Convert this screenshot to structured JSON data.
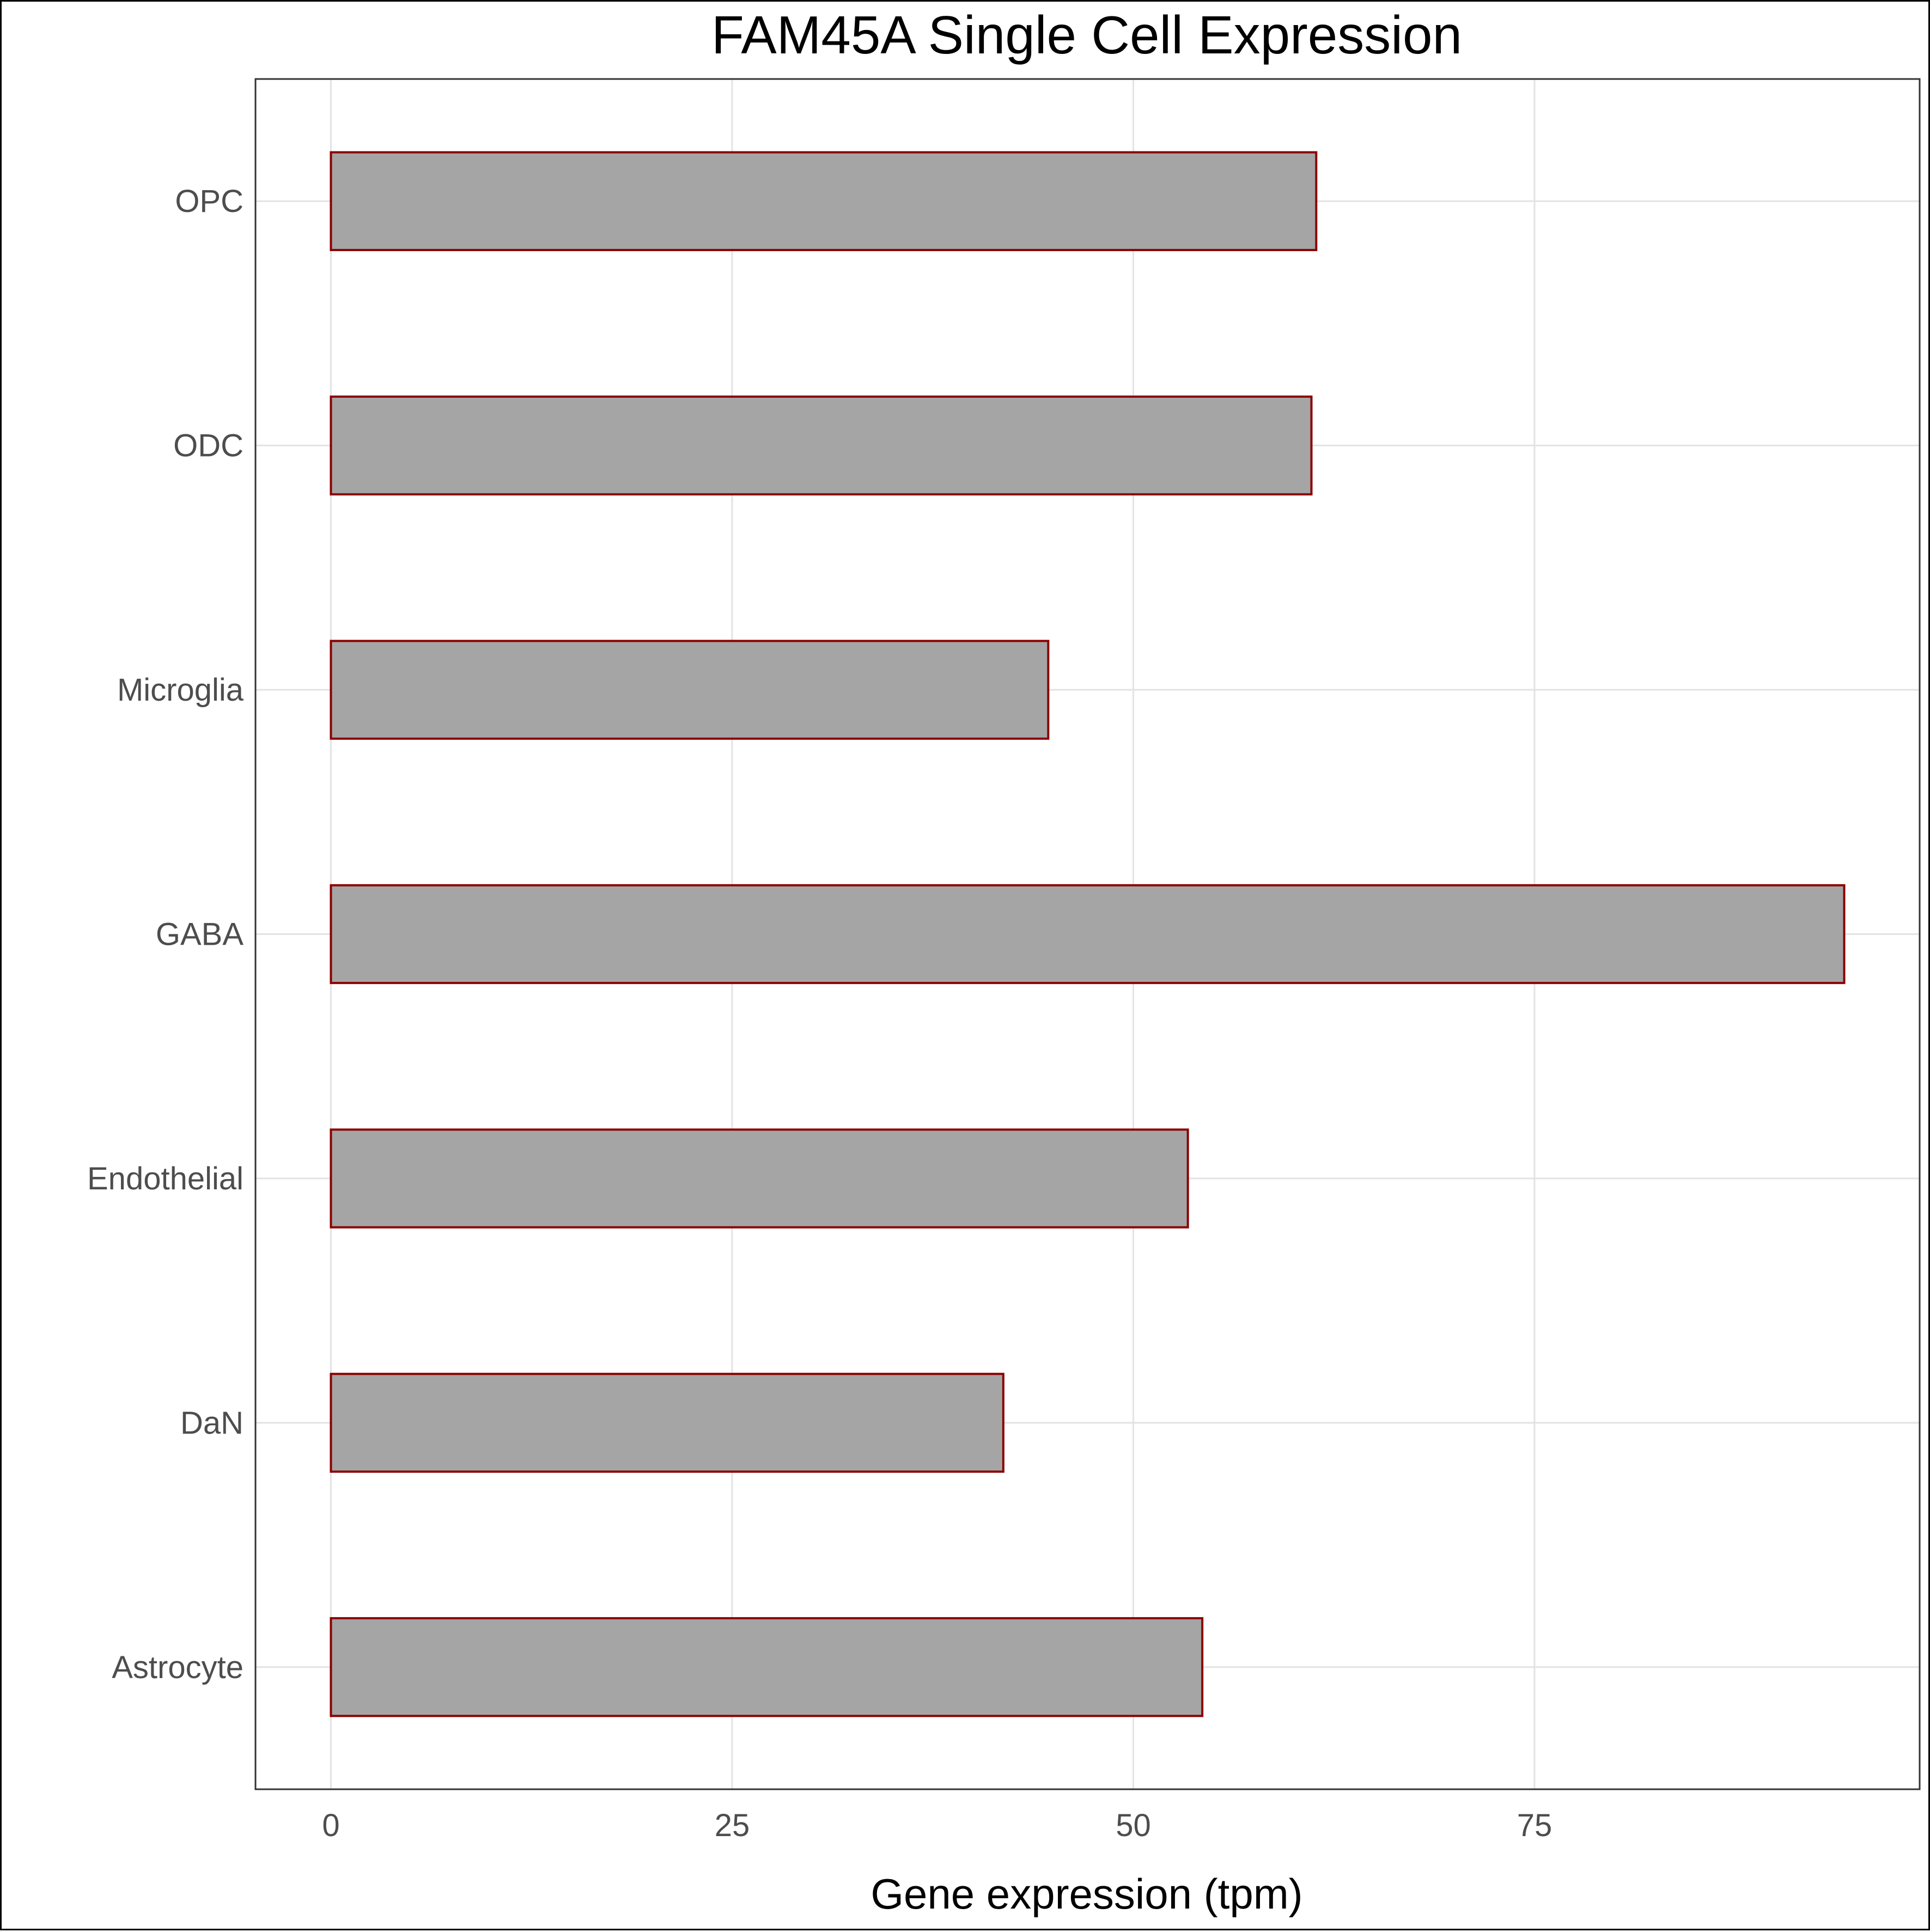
{
  "chart_data": {
    "type": "bar",
    "orientation": "horizontal",
    "title": "FAM45A Single Cell Expression",
    "xlabel": "Gene expression (tpm)",
    "ylabel": "",
    "categories": [
      "Astrocyte",
      "DaN",
      "Endothelial",
      "GABA",
      "Microglia",
      "ODC",
      "OPC"
    ],
    "values": [
      54.3,
      41.9,
      53.4,
      94.3,
      44.7,
      61.1,
      61.4
    ],
    "xlim": [
      -4.7,
      99.0
    ],
    "xticks": [
      0,
      25,
      50,
      75
    ],
    "xtick_labels": [
      "0",
      "25",
      "50",
      "75"
    ],
    "grid": true,
    "legend": "none",
    "colors": {
      "bar_fill": "#a5a5a5",
      "bar_outline": "#8b0000",
      "grid": "#e3e3e3"
    }
  }
}
